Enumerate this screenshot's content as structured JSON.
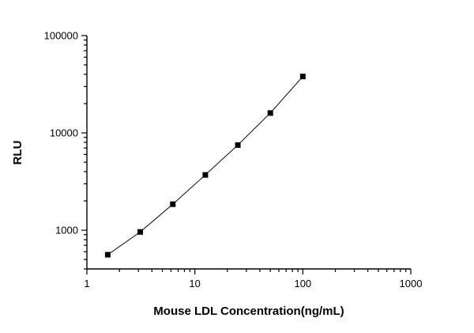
{
  "chart_data": {
    "type": "line",
    "title": "",
    "xlabel": "Mouse LDL Concentration(ng/mL)",
    "ylabel": "RLU",
    "x": [
      1.56,
      3.12,
      6.25,
      12.5,
      25,
      50,
      100
    ],
    "y": [
      560,
      960,
      1850,
      3700,
      7500,
      16000,
      38000
    ],
    "xscale": "log",
    "yscale": "log",
    "xlim": [
      1,
      1000
    ],
    "ylim": [
      400,
      100000
    ],
    "x_tick_labels": [
      1,
      10,
      100,
      1000
    ],
    "y_tick_labels": [
      1000,
      10000,
      100000
    ],
    "grid": false,
    "legend_position": "none",
    "marker": "square",
    "marker_color": "#000000",
    "line_color": "#1a1a1a",
    "axis_color": "#000000",
    "background_color": "#ffffff"
  }
}
